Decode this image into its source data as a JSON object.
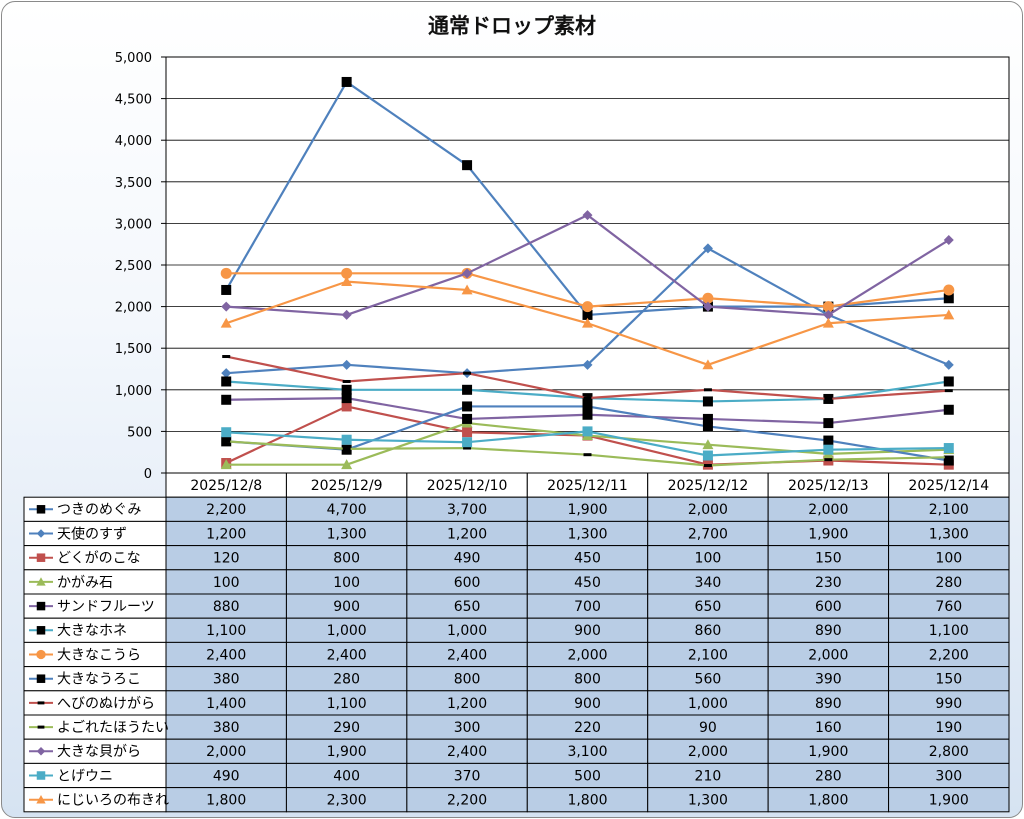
{
  "chart_data": {
    "type": "line",
    "title": "通常ドロップ素材",
    "ylim": [
      0,
      5000
    ],
    "yticks": [
      "0",
      "500",
      "1,000",
      "1,500",
      "2,000",
      "2,500",
      "3,000",
      "3,500",
      "4,000",
      "4,500",
      "5,000"
    ],
    "categories": [
      "2025/12/8",
      "2025/12/9",
      "2025/12/10",
      "2025/12/11",
      "2025/12/12",
      "2025/12/13",
      "2025/12/14"
    ],
    "grid": true,
    "legend": "data-table-below",
    "series": [
      {
        "name": "つきのめぐみ",
        "values": [
          2200,
          4700,
          3700,
          1900,
          2000,
          2000,
          2100
        ],
        "display": [
          "2,200",
          "4,700",
          "3,700",
          "1,900",
          "2,000",
          "2,000",
          "2,100"
        ],
        "color": "#4f81bd",
        "marker": "square",
        "markerColor": "#000000"
      },
      {
        "name": "天使のすず",
        "values": [
          1200,
          1300,
          1200,
          1300,
          2700,
          1900,
          1300
        ],
        "display": [
          "1,200",
          "1,300",
          "1,200",
          "1,300",
          "2,700",
          "1,900",
          "1,300"
        ],
        "color": "#4f81bd",
        "marker": "diamond",
        "markerColor": "#4f81bd"
      },
      {
        "name": "どくがのこな",
        "values": [
          120,
          800,
          490,
          450,
          100,
          150,
          100
        ],
        "display": [
          "120",
          "800",
          "490",
          "450",
          "100",
          "150",
          "100"
        ],
        "color": "#c0504d",
        "marker": "square",
        "markerColor": "#c0504d"
      },
      {
        "name": "かがみ石",
        "values": [
          100,
          100,
          600,
          450,
          340,
          230,
          280
        ],
        "display": [
          "100",
          "100",
          "600",
          "450",
          "340",
          "230",
          "280"
        ],
        "color": "#9bbb59",
        "marker": "triangle",
        "markerColor": "#9bbb59"
      },
      {
        "name": "サンドフルーツ",
        "values": [
          880,
          900,
          650,
          700,
          650,
          600,
          760
        ],
        "display": [
          "880",
          "900",
          "650",
          "700",
          "650",
          "600",
          "760"
        ],
        "color": "#8064a2",
        "marker": "square",
        "markerColor": "#000000"
      },
      {
        "name": "大きなホネ",
        "values": [
          1100,
          1000,
          1000,
          900,
          860,
          890,
          1100
        ],
        "display": [
          "1,100",
          "1,000",
          "1,000",
          "900",
          "860",
          "890",
          "1,100"
        ],
        "color": "#4bacc6",
        "marker": "square",
        "markerColor": "#000000"
      },
      {
        "name": "大きなこうら",
        "values": [
          2400,
          2400,
          2400,
          2000,
          2100,
          2000,
          2200
        ],
        "display": [
          "2,400",
          "2,400",
          "2,400",
          "2,000",
          "2,100",
          "2,000",
          "2,200"
        ],
        "color": "#f79646",
        "marker": "circle",
        "markerColor": "#f79646"
      },
      {
        "name": "大きなうろこ",
        "values": [
          380,
          280,
          800,
          800,
          560,
          390,
          150
        ],
        "display": [
          "380",
          "280",
          "800",
          "800",
          "560",
          "390",
          "150"
        ],
        "color": "#4f81bd",
        "marker": "square",
        "markerColor": "#000000"
      },
      {
        "name": "へびのぬけがら",
        "values": [
          1400,
          1100,
          1200,
          900,
          1000,
          890,
          990
        ],
        "display": [
          "1,400",
          "1,100",
          "1,200",
          "900",
          "1,000",
          "890",
          "990"
        ],
        "color": "#c0504d",
        "marker": "dash",
        "markerColor": "#000000"
      },
      {
        "name": "よごれたほうたい",
        "values": [
          380,
          290,
          300,
          220,
          90,
          160,
          190
        ],
        "display": [
          "380",
          "290",
          "300",
          "220",
          "90",
          "160",
          "190"
        ],
        "color": "#9bbb59",
        "marker": "dash",
        "markerColor": "#000000"
      },
      {
        "name": "大きな貝がら",
        "values": [
          2000,
          1900,
          2400,
          3100,
          2000,
          1900,
          2800
        ],
        "display": [
          "2,000",
          "1,900",
          "2,400",
          "3,100",
          "2,000",
          "1,900",
          "2,800"
        ],
        "color": "#8064a2",
        "marker": "diamond",
        "markerColor": "#8064a2"
      },
      {
        "name": "とげウニ",
        "values": [
          490,
          400,
          370,
          500,
          210,
          280,
          300
        ],
        "display": [
          "490",
          "400",
          "370",
          "500",
          "210",
          "280",
          "300"
        ],
        "color": "#4bacc6",
        "marker": "square",
        "markerColor": "#4bacc6"
      },
      {
        "name": "にじいろの布きれ",
        "values": [
          1800,
          2300,
          2200,
          1800,
          1300,
          1800,
          1900
        ],
        "display": [
          "1,800",
          "2,300",
          "2,200",
          "1,800",
          "1,300",
          "1,800",
          "1,900"
        ],
        "color": "#f79646",
        "marker": "triangle",
        "markerColor": "#f79646"
      }
    ]
  }
}
